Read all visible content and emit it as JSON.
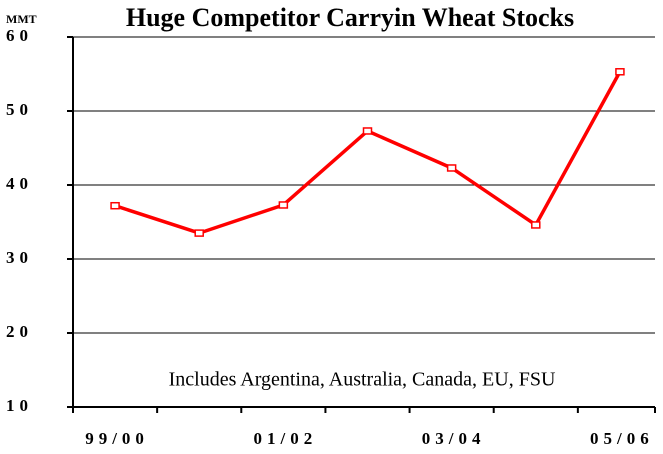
{
  "chart_data": {
    "type": "line",
    "title": "Huge Competitor Carryin Wheat Stocks",
    "y_label": "MMT",
    "annotation": "Includes Argentina, Australia, Canada, EU, FSU",
    "categories": [
      "99/00",
      null,
      "01/02",
      null,
      "03/04",
      null,
      "05/06"
    ],
    "values": [
      37.2,
      33.5,
      37.3,
      47.3,
      42.3,
      34.6,
      55.3
    ],
    "color": "#ff0000",
    "ylim": [
      10,
      60
    ],
    "yticks": [
      10,
      20,
      30,
      40,
      50,
      60
    ],
    "grid": true
  }
}
